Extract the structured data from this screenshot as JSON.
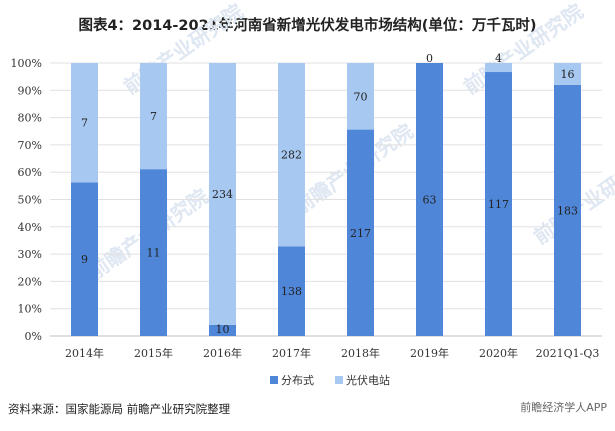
{
  "title": "图表4：2014-2021年河南省新增光伏发电市场结构(单位：万千瓦时)",
  "source": "资料来源：国家能源局 前瞻产业研究院整理",
  "corner_mark": "前瞻经济学人APP",
  "watermark_text": "前瞻产业研究院",
  "colors": {
    "distributed": "#4f86d8",
    "station": "#a7c8f0",
    "grid": "#e0e0e0",
    "axis": "#bfbfbf"
  },
  "chart_data": {
    "type": "bar",
    "stacked": "percent",
    "categories": [
      "2014年",
      "2015年",
      "2016年",
      "2017年",
      "2018年",
      "2019年",
      "2020年",
      "2021Q1-Q3"
    ],
    "series": [
      {
        "name": "分布式",
        "values": [
          9,
          11,
          10,
          138,
          217,
          63,
          117,
          183
        ]
      },
      {
        "name": "光伏电站",
        "values": [
          7,
          7,
          234,
          282,
          70,
          0,
          4,
          16
        ]
      }
    ],
    "ylim": [
      0,
      100
    ],
    "yticks": [
      "0%",
      "10%",
      "20%",
      "30%",
      "40%",
      "50%",
      "60%",
      "70%",
      "80%",
      "90%",
      "100%"
    ],
    "grid": true,
    "legend": "bottom"
  }
}
